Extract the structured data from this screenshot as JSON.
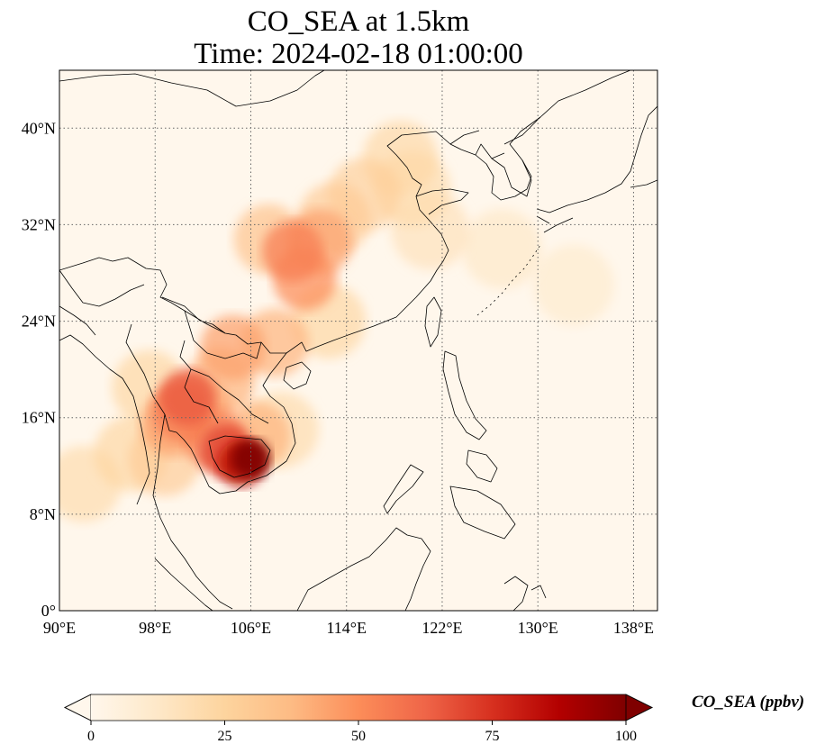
{
  "title": {
    "line1": "CO_SEA at 1.5km",
    "line2": "Time: 2024-02-18 01:00:00"
  },
  "map": {
    "lon_range": [
      90,
      140
    ],
    "lat_range": [
      0,
      44.8
    ],
    "lon_ticks": [
      {
        "value": 90,
        "label": "90°E"
      },
      {
        "value": 98,
        "label": "98°E"
      },
      {
        "value": 106,
        "label": "106°E"
      },
      {
        "value": 114,
        "label": "114°E"
      },
      {
        "value": 122,
        "label": "122°E"
      },
      {
        "value": 130,
        "label": "130°E"
      },
      {
        "value": 138,
        "label": "138°E"
      }
    ],
    "lat_ticks": [
      {
        "value": 0,
        "label": "0°"
      },
      {
        "value": 8,
        "label": "8°N"
      },
      {
        "value": 16,
        "label": "16°N"
      },
      {
        "value": 24,
        "label": "24°N"
      },
      {
        "value": 32,
        "label": "32°N"
      },
      {
        "value": 40,
        "label": "40°N"
      }
    ],
    "gridlines": true,
    "colormap": "OrRd",
    "colors": {
      "background": "#fff7ec",
      "coastline": "#000000",
      "gridline": "#666666"
    }
  },
  "colorbar": {
    "label": "CO_SEA (ppbv)",
    "range": [
      0,
      100
    ],
    "extend": "both",
    "ticks": [
      {
        "value": 0,
        "label": "0"
      },
      {
        "value": 25,
        "label": "25"
      },
      {
        "value": 50,
        "label": "50"
      },
      {
        "value": 75,
        "label": "75"
      },
      {
        "value": 100,
        "label": "100"
      }
    ],
    "stops": [
      {
        "offset": 0,
        "color": "#fff7ec"
      },
      {
        "offset": 0.125,
        "color": "#fee8c8"
      },
      {
        "offset": 0.25,
        "color": "#fdd49e"
      },
      {
        "offset": 0.375,
        "color": "#fdbb84"
      },
      {
        "offset": 0.5,
        "color": "#fc8d59"
      },
      {
        "offset": 0.625,
        "color": "#ef6548"
      },
      {
        "offset": 0.75,
        "color": "#d7301f"
      },
      {
        "offset": 0.875,
        "color": "#b30000"
      },
      {
        "offset": 1,
        "color": "#7f0000"
      }
    ]
  },
  "plumes": [
    {
      "lon": 106.0,
      "lat": 12.6,
      "value": 100
    },
    {
      "lon": 105.2,
      "lat": 12.2,
      "value": 85
    },
    {
      "lon": 104.0,
      "lat": 13.2,
      "value": 70
    },
    {
      "lon": 103.0,
      "lat": 14.2,
      "value": 55
    },
    {
      "lon": 100.7,
      "lat": 17.7,
      "value": 65
    },
    {
      "lon": 100.2,
      "lat": 16.5,
      "value": 55
    },
    {
      "lon": 101.5,
      "lat": 16.8,
      "value": 45
    },
    {
      "lon": 103.5,
      "lat": 19.0,
      "value": 40
    },
    {
      "lon": 104.5,
      "lat": 21.8,
      "value": 45
    },
    {
      "lon": 108.0,
      "lat": 22.2,
      "value": 40
    },
    {
      "lon": 110.5,
      "lat": 27.5,
      "value": 50
    },
    {
      "lon": 109.5,
      "lat": 29.8,
      "value": 55
    },
    {
      "lon": 111.8,
      "lat": 30.6,
      "value": 45
    },
    {
      "lon": 107.5,
      "lat": 30.8,
      "value": 35
    },
    {
      "lon": 113.0,
      "lat": 32.5,
      "value": 30
    },
    {
      "lon": 115.5,
      "lat": 34.5,
      "value": 28
    },
    {
      "lon": 118.5,
      "lat": 37.5,
      "value": 24
    },
    {
      "lon": 119.5,
      "lat": 35.0,
      "value": 22
    },
    {
      "lon": 96.0,
      "lat": 13.0,
      "value": 25
    },
    {
      "lon": 92.0,
      "lat": 10.5,
      "value": 22
    },
    {
      "lon": 98.8,
      "lat": 12.5,
      "value": 30
    },
    {
      "lon": 97.5,
      "lat": 18.5,
      "value": 25
    },
    {
      "lon": 106.5,
      "lat": 14.5,
      "value": 40
    },
    {
      "lon": 108.5,
      "lat": 15.0,
      "value": 22
    },
    {
      "lon": 127.0,
      "lat": 30.0,
      "value": 14
    },
    {
      "lon": 133.0,
      "lat": 27.0,
      "value": 12
    },
    {
      "lon": 121.0,
      "lat": 31.5,
      "value": 18
    },
    {
      "lon": 112.5,
      "lat": 24.0,
      "value": 25
    },
    {
      "lon": 99.5,
      "lat": 15.5,
      "value": 45
    }
  ]
}
